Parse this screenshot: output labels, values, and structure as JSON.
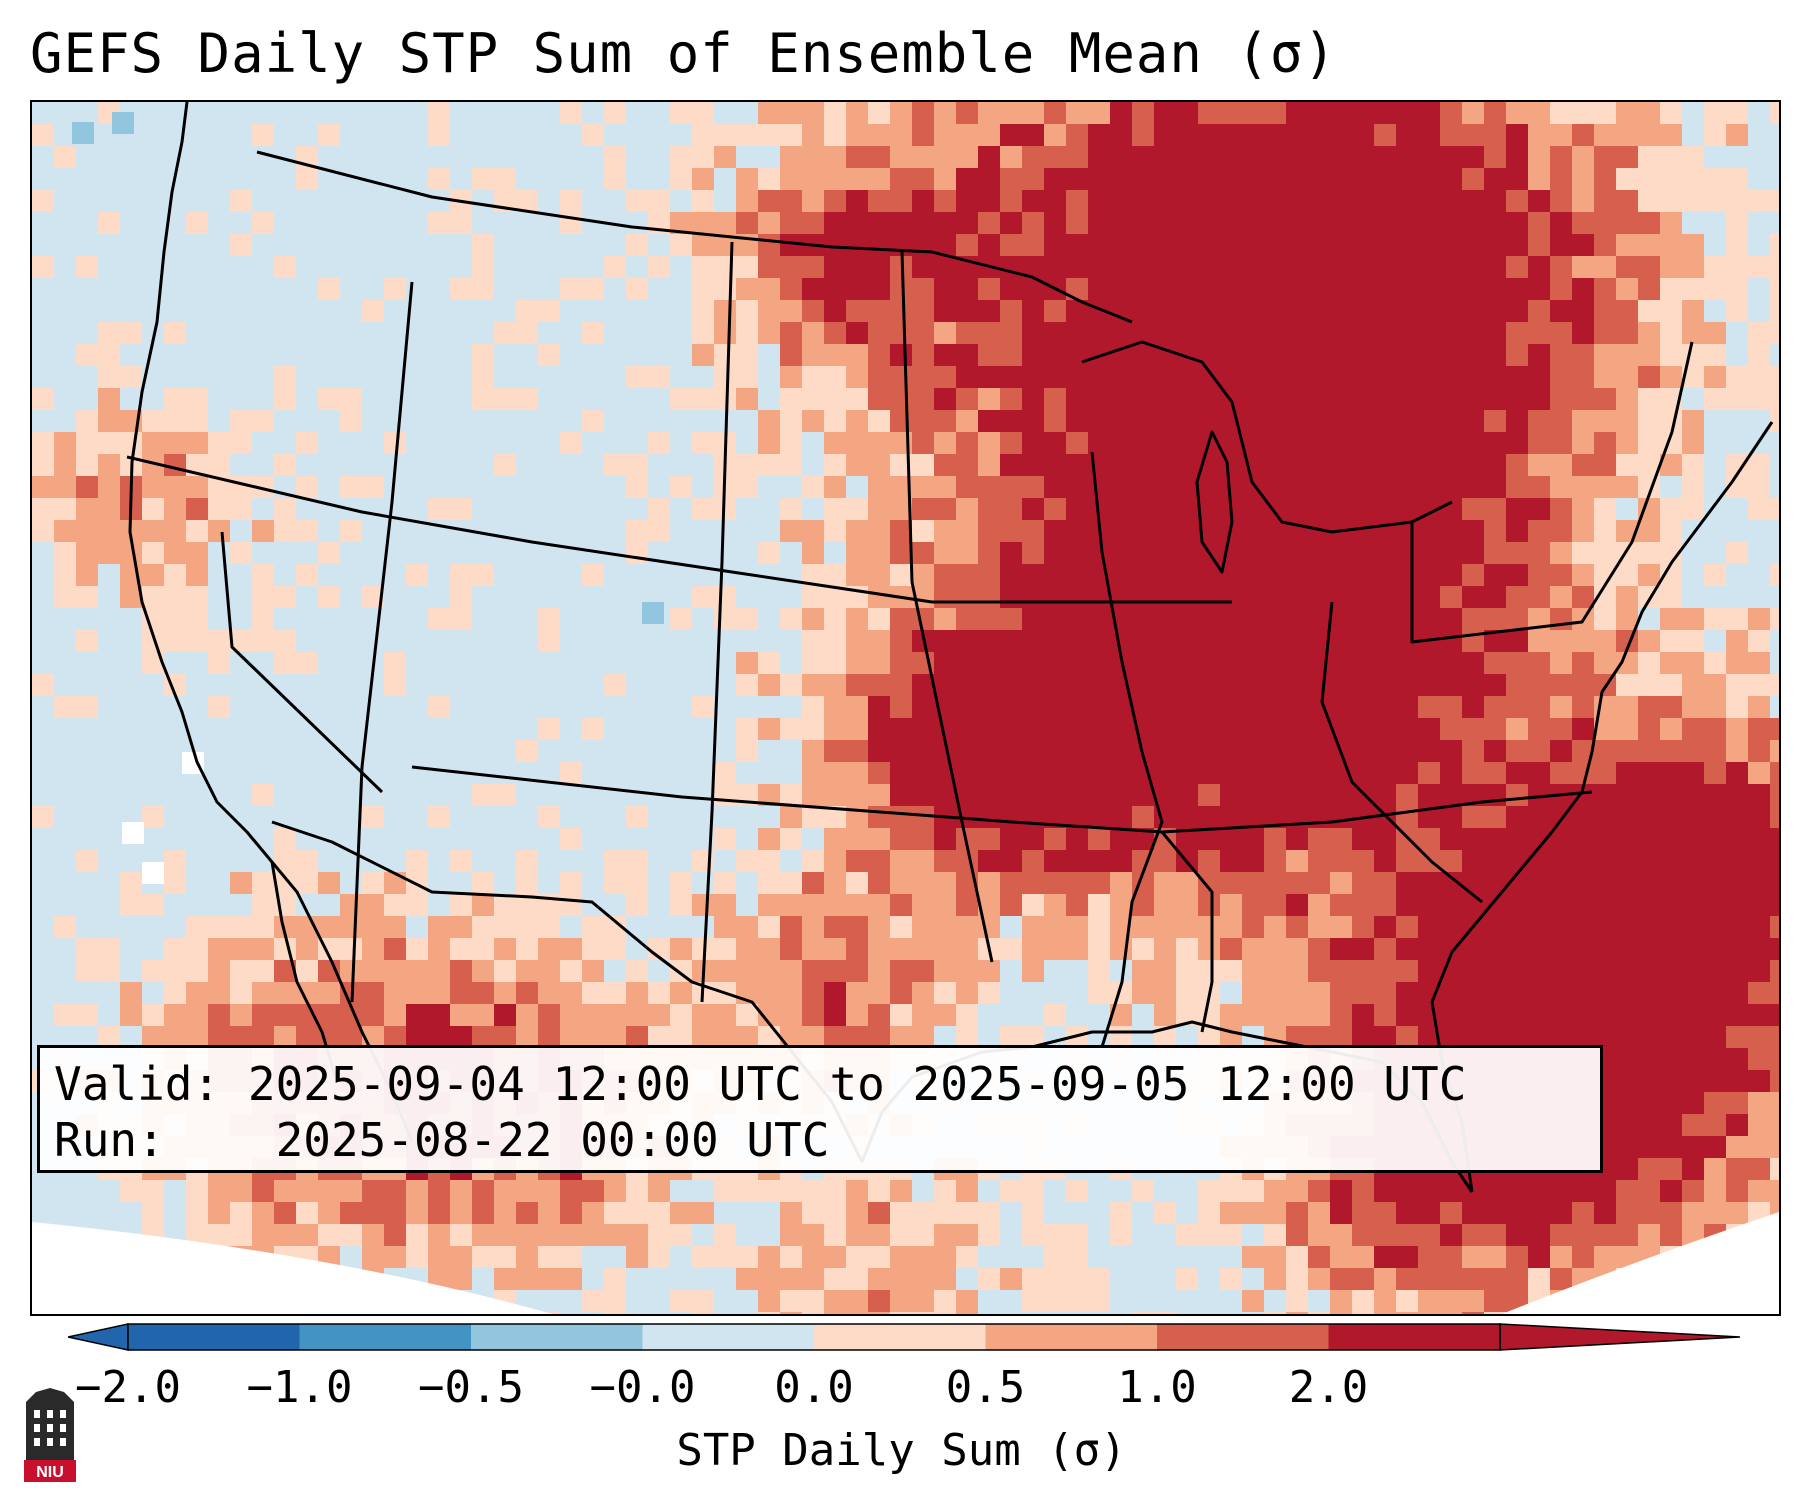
{
  "title": "GEFS Daily STP Sum of Ensemble Mean (σ)",
  "info": {
    "valid_label": "Valid:",
    "valid_value": "2025-09-04 12:00 UTC to 2025-09-05 12:00 UTC",
    "run_label": "Run:",
    "run_value": "2025-08-22 00:00 UTC"
  },
  "colorbar": {
    "label": "STP Daily Sum (σ)",
    "ticks": [
      "−2.0",
      "−1.0",
      "−0.5",
      "−0.0",
      "0.0",
      "0.5",
      "1.0",
      "2.0"
    ],
    "colors": [
      "#2166ac",
      "#4393c3",
      "#92c5de",
      "#d1e5f0",
      "#fddbc7",
      "#f4a582",
      "#d6604d",
      "#b2182b"
    ],
    "extend_low_color": "#2166ac",
    "extend_high_color": "#b2182b"
  },
  "map": {
    "background_value_color": "#d1e5f0",
    "region": "Contiguous United States with parts of Canada, Mexico and the Gulf of Mexico"
  },
  "logo": {
    "text": "NIU"
  }
}
